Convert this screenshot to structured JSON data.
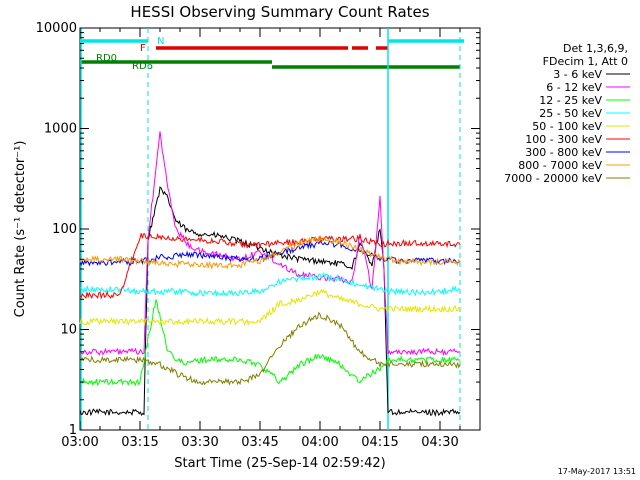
{
  "chart_data": {
    "type": "line",
    "title": "HESSI Observing Summary Count Rates",
    "xlabel": "Start Time (25-Sep-14 02:59:42)",
    "ylabel": "Count Rate (s⁻¹ detector⁻¹)",
    "yscale": "log",
    "xlim": [
      "03:00",
      "04:40"
    ],
    "ylim": [
      1,
      10000
    ],
    "x_ticks": [
      "03:00",
      "03:15",
      "03:30",
      "03:45",
      "04:00",
      "04:15",
      "04:30"
    ],
    "y_ticks": [
      "1",
      "10",
      "100",
      "1000",
      "10000"
    ],
    "grid": false,
    "legend_position": "right",
    "legend_header": [
      "Det 1,3,6,9,",
      "FDecim 1, Att 0"
    ],
    "footer_date": "17-May-2017 13:51",
    "flags": [
      {
        "label": "N",
        "color": "#00e5e5",
        "spans": [
          [
            "03:00",
            "03:17"
          ],
          [
            "04:17",
            "04:36"
          ]
        ]
      },
      {
        "label": "F",
        "color": "#e00000",
        "spans": [
          [
            "03:19",
            "03:57"
          ],
          [
            "03:57",
            "04:07"
          ],
          [
            "04:08",
            "04:12"
          ],
          [
            "04:14",
            "04:17"
          ]
        ]
      },
      {
        "label": "RD0",
        "color": "#008000",
        "spans": [
          [
            "03:00",
            "03:48"
          ]
        ]
      },
      {
        "label": "RD6",
        "color": "#008000",
        "spans": [
          [
            "03:48",
            "04:12"
          ],
          [
            "04:12",
            "04:35"
          ]
        ]
      }
    ],
    "night_markers": [
      "03:17",
      "04:35"
    ],
    "series": [
      {
        "name": "3 - 6 keV",
        "color": "#000000",
        "x": [
          "03:00",
          "03:10",
          "03:16",
          "03:17",
          "03:20",
          "03:22",
          "03:24",
          "03:27",
          "03:30",
          "03:35",
          "03:40",
          "03:45",
          "03:50",
          "03:55",
          "04:00",
          "04:05",
          "04:08",
          "04:10",
          "04:13",
          "04:15",
          "04:16",
          "04:17",
          "04:20",
          "04:25",
          "04:30",
          "04:35"
        ],
        "y": [
          1.5,
          1.5,
          1.5,
          80,
          250,
          200,
          120,
          95,
          90,
          85,
          75,
          65,
          55,
          50,
          48,
          45,
          42,
          70,
          45,
          100,
          40,
          1.5,
          1.5,
          1.5,
          1.5,
          1.5
        ]
      },
      {
        "name": "6 - 12 keV",
        "color": "#ff00ff",
        "x": [
          "03:00",
          "03:10",
          "03:16",
          "03:17",
          "03:20",
          "03:22",
          "03:24",
          "03:27",
          "03:30",
          "03:35",
          "03:40",
          "03:45",
          "03:50",
          "03:55",
          "04:00",
          "04:05",
          "04:08",
          "04:10",
          "04:13",
          "04:15",
          "04:16",
          "04:17",
          "04:20",
          "04:25",
          "04:30",
          "04:35"
        ],
        "y": [
          6,
          6,
          6,
          80,
          900,
          250,
          100,
          70,
          60,
          55,
          50,
          60,
          45,
          35,
          33,
          32,
          30,
          90,
          25,
          200,
          40,
          6,
          6,
          6,
          6,
          6
        ]
      },
      {
        "name": "12 - 25 keV",
        "color": "#00ff00",
        "x": [
          "03:00",
          "03:05",
          "03:10",
          "03:15",
          "03:17",
          "03:19",
          "03:22",
          "03:26",
          "03:30",
          "03:35",
          "03:40",
          "03:45",
          "03:50",
          "03:55",
          "04:00",
          "04:05",
          "04:08",
          "04:10",
          "04:12",
          "04:15",
          "04:17",
          "04:20",
          "04:25",
          "04:30",
          "04:35"
        ],
        "y": [
          3,
          3,
          3,
          3,
          8,
          20,
          6,
          4.5,
          5,
          5,
          5,
          4.5,
          3,
          4.5,
          5.5,
          4.5,
          3.5,
          3,
          3.5,
          4,
          5,
          5,
          5,
          5,
          5
        ]
      },
      {
        "name": "25 - 50 keV",
        "color": "#00ffff",
        "x": [
          "03:00",
          "03:10",
          "03:15",
          "03:20",
          "03:25",
          "03:30",
          "03:35",
          "03:40",
          "03:45",
          "03:50",
          "03:55",
          "04:00",
          "04:05",
          "04:10",
          "04:15",
          "04:17",
          "04:20",
          "04:25",
          "04:30",
          "04:35"
        ],
        "y": [
          25,
          25,
          24,
          24,
          24,
          23,
          23,
          23,
          24,
          30,
          32,
          34,
          32,
          28,
          25,
          24,
          24,
          23,
          24,
          25
        ]
      },
      {
        "name": "50 - 100 keV",
        "color": "#e5e500",
        "x": [
          "03:00",
          "03:10",
          "03:15",
          "03:20",
          "03:25",
          "03:30",
          "03:35",
          "03:40",
          "03:45",
          "03:50",
          "03:55",
          "04:00",
          "04:05",
          "04:10",
          "04:15",
          "04:17",
          "04:20",
          "04:25",
          "04:30",
          "04:35"
        ],
        "y": [
          12,
          12,
          12,
          12,
          12,
          12,
          12,
          12,
          12,
          18,
          20,
          24,
          20,
          18,
          16,
          16,
          16,
          16,
          16,
          16
        ]
      },
      {
        "name": "100 - 300 keV",
        "color": "#ff0000",
        "x": [
          "03:00",
          "03:05",
          "03:10",
          "03:15",
          "03:20",
          "03:25",
          "03:30",
          "03:35",
          "03:40",
          "03:45",
          "03:50",
          "03:55",
          "04:00",
          "04:05",
          "04:10",
          "04:15",
          "04:17",
          "04:20",
          "04:25",
          "04:30",
          "04:35"
        ],
        "y": [
          22,
          22,
          22,
          85,
          85,
          80,
          78,
          75,
          70,
          70,
          72,
          75,
          80,
          80,
          80,
          70,
          72,
          72,
          72,
          72,
          70
        ]
      },
      {
        "name": "300 - 800 keV",
        "color": "#0000ff",
        "x": [
          "03:00",
          "03:05",
          "03:10",
          "03:15",
          "03:20",
          "03:25",
          "03:30",
          "03:35",
          "03:40",
          "03:45",
          "03:50",
          "03:55",
          "04:00",
          "04:05",
          "04:10",
          "04:15",
          "04:17",
          "04:20",
          "04:25",
          "04:30",
          "04:35"
        ],
        "y": [
          45,
          46,
          47,
          48,
          52,
          55,
          55,
          52,
          50,
          50,
          58,
          65,
          72,
          70,
          60,
          52,
          50,
          48,
          48,
          48,
          48
        ]
      },
      {
        "name": "800 - 7000 keV",
        "color": "#ff9900",
        "x": [
          "03:00",
          "03:05",
          "03:10",
          "03:15",
          "03:20",
          "03:25",
          "03:30",
          "03:35",
          "03:40",
          "03:45",
          "03:50",
          "03:55",
          "04:00",
          "04:05",
          "04:10",
          "04:15",
          "04:17",
          "04:20",
          "04:25",
          "04:30",
          "04:35"
        ],
        "y": [
          50,
          50,
          50,
          48,
          46,
          45,
          44,
          43,
          44,
          48,
          60,
          72,
          80,
          75,
          62,
          52,
          50,
          48,
          47,
          47,
          47
        ]
      },
      {
        "name": "7000 - 20000 keV",
        "color": "#808000",
        "x": [
          "03:00",
          "03:05",
          "03:10",
          "03:15",
          "03:20",
          "03:25",
          "03:30",
          "03:35",
          "03:40",
          "03:45",
          "03:50",
          "03:55",
          "04:00",
          "04:05",
          "04:10",
          "04:15",
          "04:17",
          "04:20",
          "04:25",
          "04:30",
          "04:35"
        ],
        "y": [
          5,
          5,
          5,
          5,
          4.5,
          3.5,
          3,
          3,
          3,
          3.5,
          7,
          11,
          14,
          11,
          6,
          4.5,
          4.5,
          4.5,
          4.5,
          4.5,
          4.5
        ]
      }
    ]
  }
}
